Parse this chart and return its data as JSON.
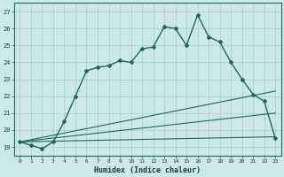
{
  "xlabel": "Humidex (Indice chaleur)",
  "ylabel": "",
  "xlim": [
    -0.5,
    23.5
  ],
  "ylim": [
    18.5,
    27.5
  ],
  "yticks": [
    19,
    20,
    21,
    22,
    23,
    24,
    25,
    26,
    27
  ],
  "xticks": [
    0,
    1,
    2,
    3,
    4,
    5,
    6,
    7,
    8,
    9,
    10,
    11,
    12,
    13,
    14,
    15,
    16,
    17,
    18,
    19,
    20,
    21,
    22,
    23
  ],
  "bg_color": "#cce8e8",
  "grid_color": "#aacccc",
  "line_color": "#1a6b5a",
  "main_line_x": [
    0,
    1,
    2,
    3,
    4,
    5,
    6,
    7,
    8,
    9,
    10,
    11,
    12,
    13,
    14,
    15,
    16,
    17,
    18,
    19,
    20,
    21,
    22,
    23
  ],
  "main_line_y": [
    19.3,
    19.1,
    18.9,
    19.3,
    20.5,
    22.0,
    23.5,
    23.7,
    23.8,
    24.1,
    24.0,
    24.8,
    24.9,
    26.1,
    26.0,
    25.0,
    26.8,
    25.5,
    25.2,
    24.0,
    23.0,
    22.1,
    21.7,
    19.5
  ],
  "line2_x": [
    0,
    23
  ],
  "line2_y": [
    19.3,
    22.3
  ],
  "line3_x": [
    0,
    23
  ],
  "line3_y": [
    19.3,
    19.6
  ],
  "line4_x": [
    0,
    23
  ],
  "line4_y": [
    19.3,
    21.0
  ]
}
